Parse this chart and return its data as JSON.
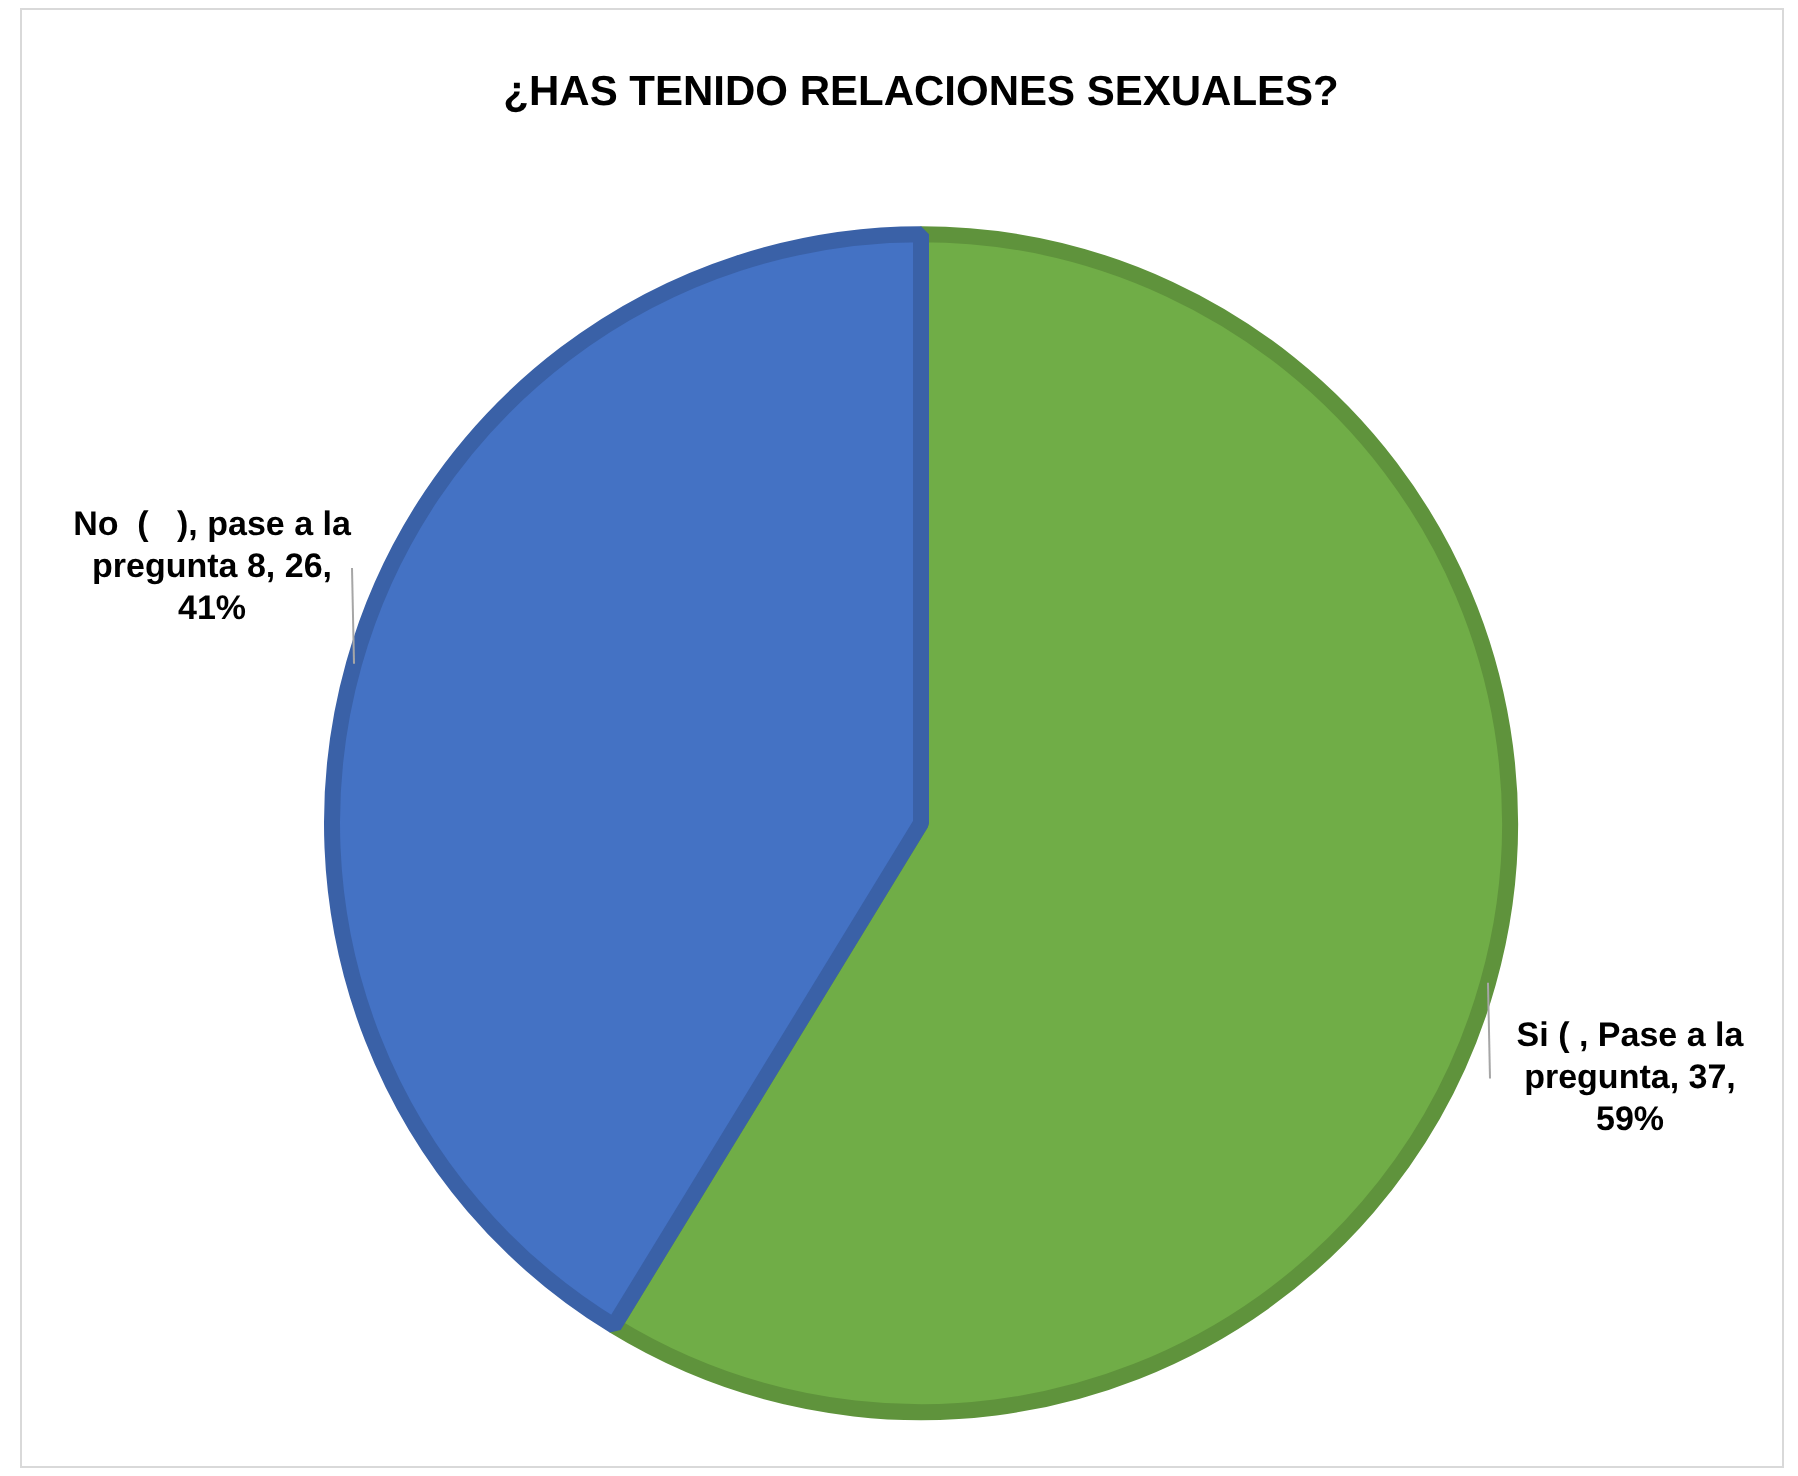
{
  "chart_data": {
    "type": "pie",
    "title": "¿HAS TENIDO RELACIONES SEXUALES?",
    "categories": [
      "Si ( , Pase a la pregunta",
      "No  (   ), pase a la pregunta 8"
    ],
    "values": [
      37,
      26
    ],
    "colors": [
      "#70ad47",
      "#4472c4"
    ],
    "value_labels": [
      ", 37, 59%",
      ", 26, 41%"
    ],
    "legend": false
  }
}
